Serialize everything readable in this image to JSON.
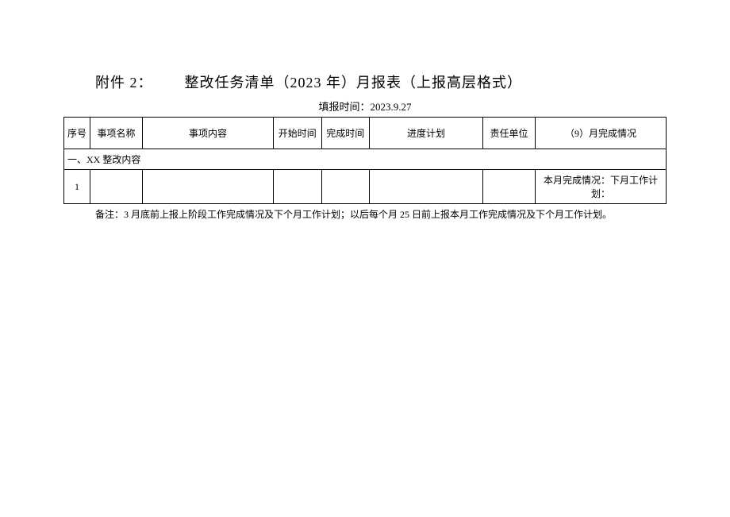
{
  "title": {
    "attachment_label": "附件 2：",
    "main_title": "整改任务清单（2023 年）月报表（上报高层格式）"
  },
  "report_time_label": "填报时间：",
  "report_time_value": "2023.9.27",
  "table": {
    "headers": {
      "seq": "序号",
      "name": "事项名称",
      "content": "事项内容",
      "start": "开始时间",
      "end": "完成时间",
      "plan": "进度计划",
      "unit": "责任单位",
      "status": "（9）月完成情况"
    },
    "section_label": "一、XX 整改内容",
    "rows": [
      {
        "seq": "1",
        "name": "",
        "content": "",
        "start": "",
        "end": "",
        "plan": "",
        "unit": "",
        "status": "本月完成情况：下月工作计划："
      }
    ]
  },
  "footnote": "备注：3 月底前上报上阶段工作完成情况及下个月工作计划；以后每个月 25 日前上报本月工作完成情况及下个月工作计划。",
  "colors": {
    "background": "#ffffff",
    "border": "#000000",
    "text": "#000000"
  }
}
